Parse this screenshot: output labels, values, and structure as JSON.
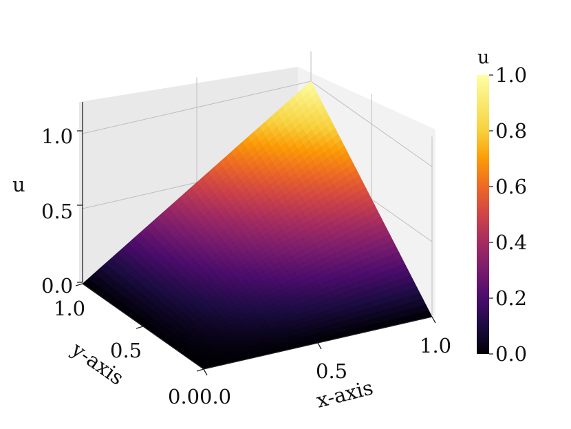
{
  "chart_data": {
    "type": "surface",
    "surface_function": "u(x, y) = x * y",
    "colormap": "inferno",
    "xlabel": "x-axis",
    "ylabel": "y-axis",
    "zlabel": "u",
    "x_ticks": [
      "0.0",
      "0.5",
      "1.0"
    ],
    "y_ticks": [
      "0.0",
      "0.5",
      "1.0"
    ],
    "z_ticks": [
      "0.0",
      "0.5",
      "1.0"
    ],
    "xlim": [
      0,
      1
    ],
    "ylim": [
      0,
      1
    ],
    "zlim": [
      0,
      1.2
    ],
    "grid": true,
    "peak": {
      "x": 1.0,
      "y": 1.0,
      "u": 1.0
    },
    "colorbar": {
      "label": "u",
      "ticks": [
        "0.0",
        "0.2",
        "0.4",
        "0.6",
        "0.8",
        "1.0"
      ],
      "range": [
        0,
        1
      ]
    },
    "colors": {
      "pane_back": "#e9e9e9",
      "pane_side": "#f3f3f3",
      "grid": "#bdbdbd",
      "floor": "#0a0614"
    }
  }
}
